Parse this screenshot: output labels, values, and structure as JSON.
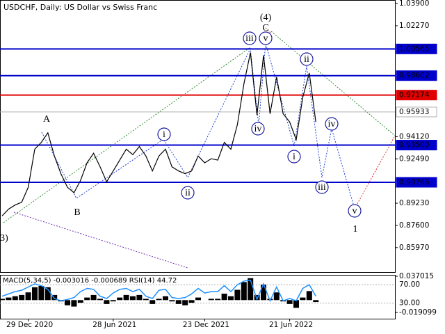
{
  "chart_data": {
    "type": "line",
    "title": "USDCHF, Daily:  US Dollar vs Swiss Franc",
    "color": "#000000",
    "categories": [
      null,
      null,
      null,
      null,
      "29 Dec 2020",
      null,
      null,
      null,
      null,
      null,
      null,
      null,
      null,
      null,
      null,
      null,
      null,
      "28 Jun 2021",
      null,
      null,
      null,
      null,
      null,
      null,
      null,
      null,
      null,
      null,
      null,
      null,
      null,
      "23 Dec 2021",
      null,
      null,
      null,
      null,
      null,
      null,
      null,
      null,
      null,
      null,
      null,
      null,
      "21 Jun 2022",
      null,
      null,
      null,
      null
    ],
    "values": [
      0.883,
      0.888,
      0.891,
      0.893,
      0.904,
      0.932,
      0.937,
      0.944,
      0.927,
      0.914,
      0.904,
      0.9,
      0.909,
      0.922,
      0.929,
      0.919,
      0.908,
      0.916,
      0.924,
      0.932,
      0.928,
      0.934,
      0.927,
      0.916,
      0.927,
      0.932,
      0.919,
      0.916,
      0.914,
      0.916,
      0.927,
      0.922,
      0.925,
      0.924,
      0.937,
      0.932,
      0.95,
      0.98,
      1.003,
      0.957,
      1.001,
      0.958,
      0.985,
      0.958,
      0.952,
      0.939,
      0.97,
      0.988,
      0.952
    ],
    "ylim": [
      0.8412,
      1.0416
    ],
    "yticks": [
      {
        "value": 1.039,
        "label": "1.03900"
      },
      {
        "value": 1.0227,
        "label": "1.02270"
      },
      {
        "value": 0.9412,
        "label": "0.94120"
      },
      {
        "value": 0.9249,
        "label": "0.92490"
      },
      {
        "value": 0.8923,
        "label": "0.89230"
      },
      {
        "value": 0.876,
        "label": "0.87600"
      },
      {
        "value": 0.8597,
        "label": "0.85970"
      }
    ],
    "levels": [
      {
        "value": 1.00565,
        "label": "1.00565",
        "color": "#0000cc"
      },
      {
        "value": 0.98602,
        "label": "0.98602",
        "color": "#0000cc"
      },
      {
        "value": 0.97174,
        "label": "0.97174",
        "color": "#e00000"
      },
      {
        "value": 0.95933,
        "label": "0.95933",
        "color": "#b0b0b0"
      },
      {
        "value": 0.935,
        "label": "0.93500",
        "color": "#0000cc"
      },
      {
        "value": 0.90766,
        "label": "0.90766",
        "color": "#0000cc"
      }
    ],
    "annotations": [
      {
        "text": "(4)",
        "color": "#2e8b2e"
      },
      {
        "text": "C",
        "color": "#a0302a"
      },
      {
        "text": "A",
        "color": "#a0302a"
      },
      {
        "text": "B",
        "color": "#a0302a"
      },
      {
        "text": "3)",
        "color": "#2e8b2e"
      },
      {
        "text": "1",
        "color": "#a0302a"
      },
      {
        "text": "iii",
        "color": "#1a1aa0"
      },
      {
        "text": "v",
        "color": "#1a1aa0"
      },
      {
        "text": "ii",
        "color": "#1a1aa0"
      },
      {
        "text": "iv",
        "color": "#1a1aa0"
      },
      {
        "text": "i",
        "color": "#1a1aa0"
      },
      {
        "text": "ii",
        "color": "#1a1aa0"
      },
      {
        "text": "i",
        "color": "#1a1aa0"
      },
      {
        "text": "iv",
        "color": "#1a1aa0"
      },
      {
        "text": "iii",
        "color": "#1a1aa0"
      },
      {
        "text": "v",
        "color": "#1a1aa0"
      }
    ],
    "indicator": {
      "title": "MACD(5,34,5) -0.003016 -0.000689 RSI(14) 44.72",
      "macd": [
        0.002,
        0.004,
        0.006,
        0.008,
        0.012,
        0.02,
        0.022,
        0.02,
        0.008,
        -0.002,
        -0.008,
        -0.01,
        -0.004,
        0.004,
        0.008,
        0.002,
        -0.006,
        -0.002,
        0.004,
        0.008,
        0.006,
        0.008,
        0.002,
        -0.006,
        0.002,
        0.006,
        -0.002,
        -0.006,
        -0.008,
        -0.004,
        0.004,
        0,
        0.002,
        0.002,
        0.01,
        0.006,
        0.016,
        0.028,
        0.034,
        0.008,
        0.024,
        0.002,
        0.012,
        -0.002,
        -0.006,
        -0.012,
        0.004,
        0.014,
        -0.003
      ],
      "macd_color": "#000000",
      "ylim": [
        -0.019099,
        0.037015
      ],
      "yticks": [
        {
          "value": 0.037015,
          "label": "0.037015"
        },
        {
          "value": -0.019099,
          "label": "-0.019099"
        }
      ],
      "rsi": [
        45,
        50,
        55,
        58,
        65,
        72,
        68,
        60,
        40,
        35,
        38,
        42,
        55,
        62,
        60,
        45,
        40,
        52,
        60,
        62,
        55,
        60,
        45,
        40,
        58,
        60,
        42,
        40,
        42,
        50,
        62,
        52,
        55,
        55,
        68,
        55,
        70,
        78,
        80,
        38,
        72,
        35,
        65,
        35,
        40,
        35,
        62,
        70,
        45
      ],
      "rsi_color": "#1e90ff",
      "rsi_ylim": [
        -4,
        90
      ],
      "rsi_yticks": [
        {
          "value": 70,
          "label": "70.00"
        },
        {
          "value": 30,
          "label": "30.00"
        }
      ]
    }
  }
}
